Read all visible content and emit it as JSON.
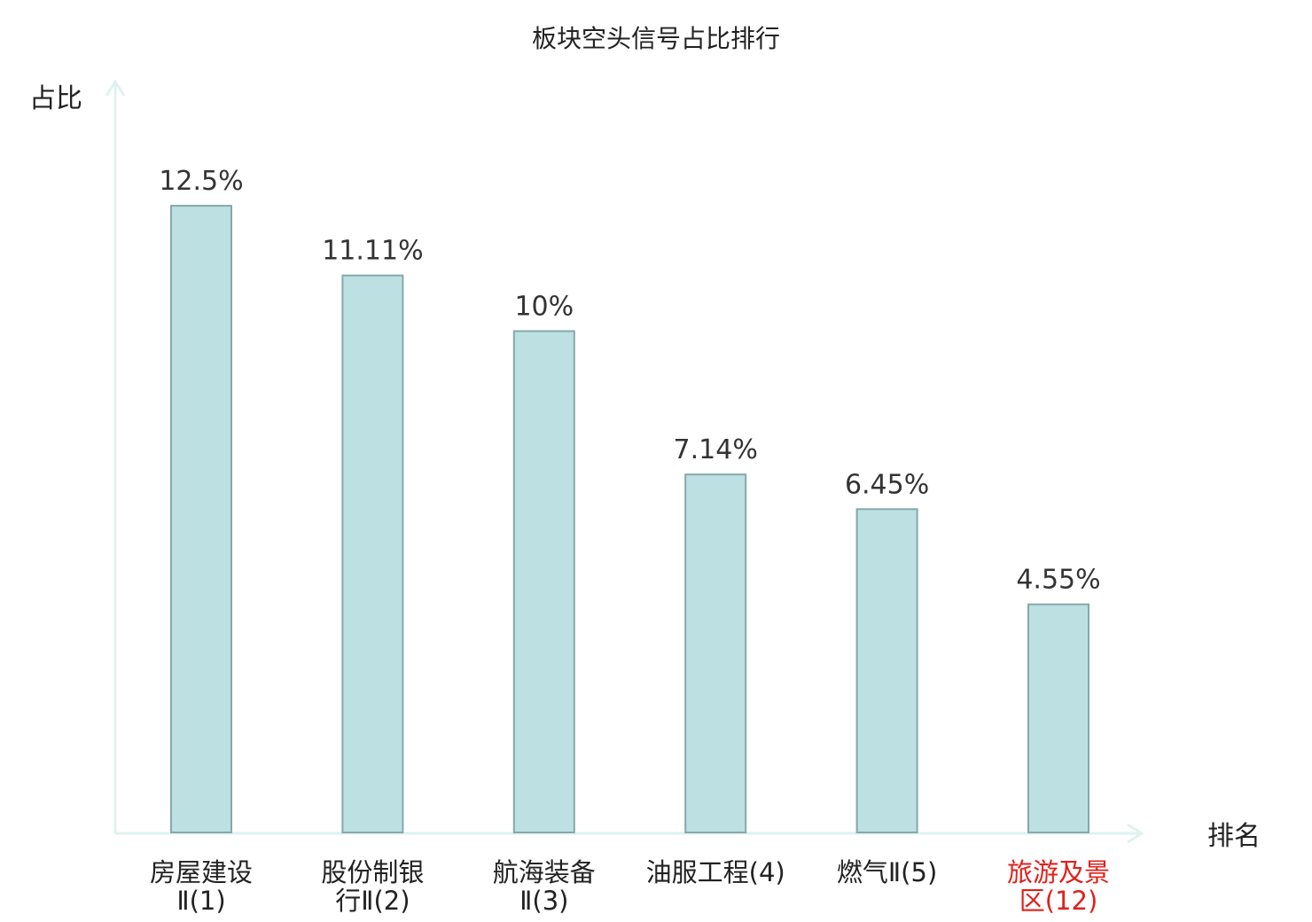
{
  "chart_data": {
    "type": "bar",
    "title": "板块空头信号占比排行",
    "ylabel": "占比",
    "xlabel": "排名",
    "ylim": [
      0,
      13
    ],
    "grid": false,
    "categories": [
      {
        "lines": [
          "房屋建设",
          "Ⅱ(1)"
        ],
        "highlight": false
      },
      {
        "lines": [
          "股份制银",
          "行Ⅱ(2)"
        ],
        "highlight": false
      },
      {
        "lines": [
          "航海装备",
          "Ⅱ(3)"
        ],
        "highlight": false
      },
      {
        "lines": [
          "油服工程(4)"
        ],
        "highlight": false
      },
      {
        "lines": [
          "燃气Ⅱ(5)"
        ],
        "highlight": false
      },
      {
        "lines": [
          "旅游及景",
          "区(12)"
        ],
        "highlight": true
      }
    ],
    "values": [
      12.5,
      11.11,
      10,
      7.14,
      6.45,
      4.55
    ],
    "data_labels": [
      "12.5%",
      "11.11%",
      "10%",
      "7.14%",
      "6.45%",
      "4.55%"
    ]
  },
  "colors": {
    "bar_fill": "#bde0e3",
    "bar_stroke": "#86a8aa",
    "axis": "#dff2ef",
    "label_normal": "#222222",
    "label_highlight": "#e0201b"
  }
}
